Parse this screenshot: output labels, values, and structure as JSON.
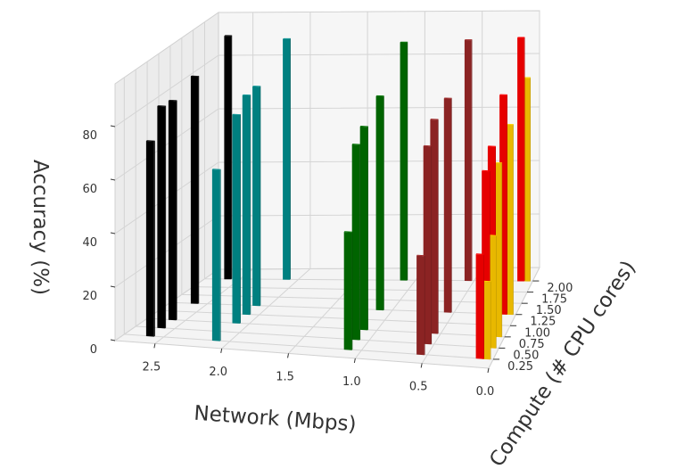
{
  "chart_data": {
    "type": "bar3d",
    "xlabel": "Network (Mbps)",
    "ylabel": "Compute (# CPU cores)",
    "zlabel": "Accuracy (%)",
    "x_ticks": [
      "2.5",
      "2.0",
      "1.5",
      "1.0",
      "0.5",
      "0.0"
    ],
    "y_ticks": [
      "0.25",
      "0.50",
      "0.75",
      "1.00",
      "1.25",
      "1.50",
      "1.75",
      "2.00"
    ],
    "z_ticks": [
      "0",
      "20",
      "40",
      "60",
      "80"
    ],
    "xlim": [
      0,
      2.8
    ],
    "ylim": [
      0.05,
      2.3
    ],
    "zlim": [
      0,
      96
    ],
    "grid": true,
    "series": [
      {
        "color": "#000000",
        "bars": [
          {
            "x": 2.6,
            "y": 0.25,
            "z": 73
          },
          {
            "x": 2.6,
            "y": 0.5,
            "z": 83
          },
          {
            "x": 2.6,
            "y": 0.75,
            "z": 82
          },
          {
            "x": 2.6,
            "y": 1.25,
            "z": 85
          },
          {
            "x": 2.6,
            "y": 2.0,
            "z": 91
          }
        ]
      },
      {
        "color": "#008080",
        "bars": [
          {
            "x": 2.1,
            "y": 0.25,
            "z": 64
          },
          {
            "x": 2.1,
            "y": 0.75,
            "z": 78
          },
          {
            "x": 2.1,
            "y": 1.0,
            "z": 82
          },
          {
            "x": 2.1,
            "y": 1.25,
            "z": 82
          },
          {
            "x": 2.1,
            "y": 2.0,
            "z": 90
          }
        ]
      },
      {
        "color": "#006400",
        "bars": [
          {
            "x": 1.1,
            "y": 0.25,
            "z": 44
          },
          {
            "x": 1.1,
            "y": 0.5,
            "z": 73
          },
          {
            "x": 1.1,
            "y": 0.75,
            "z": 76
          },
          {
            "x": 1.1,
            "y": 1.25,
            "z": 80
          },
          {
            "x": 1.1,
            "y": 2.0,
            "z": 89
          }
        ]
      },
      {
        "color": "#8b2323",
        "bars": [
          {
            "x": 0.55,
            "y": 0.25,
            "z": 37
          },
          {
            "x": 0.55,
            "y": 0.5,
            "z": 74
          },
          {
            "x": 0.55,
            "y": 0.75,
            "z": 80
          },
          {
            "x": 0.55,
            "y": 1.25,
            "z": 80
          },
          {
            "x": 0.55,
            "y": 2.0,
            "z": 90
          }
        ]
      },
      {
        "color": "#e60000",
        "bars": [
          {
            "x": 0.1,
            "y": 0.25,
            "z": 39
          },
          {
            "x": 0.1,
            "y": 0.5,
            "z": 66
          },
          {
            "x": 0.1,
            "y": 0.75,
            "z": 71
          },
          {
            "x": 0.1,
            "y": 1.25,
            "z": 82
          },
          {
            "x": 0.1,
            "y": 2.0,
            "z": 91
          }
        ]
      },
      {
        "color": "#e8b800",
        "bars": [
          {
            "x": 0.05,
            "y": 0.25,
            "z": 29
          },
          {
            "x": 0.05,
            "y": 0.5,
            "z": 42
          },
          {
            "x": 0.05,
            "y": 0.75,
            "z": 65
          },
          {
            "x": 0.05,
            "y": 1.25,
            "z": 71
          },
          {
            "x": 0.05,
            "y": 2.0,
            "z": 76
          }
        ]
      }
    ]
  }
}
